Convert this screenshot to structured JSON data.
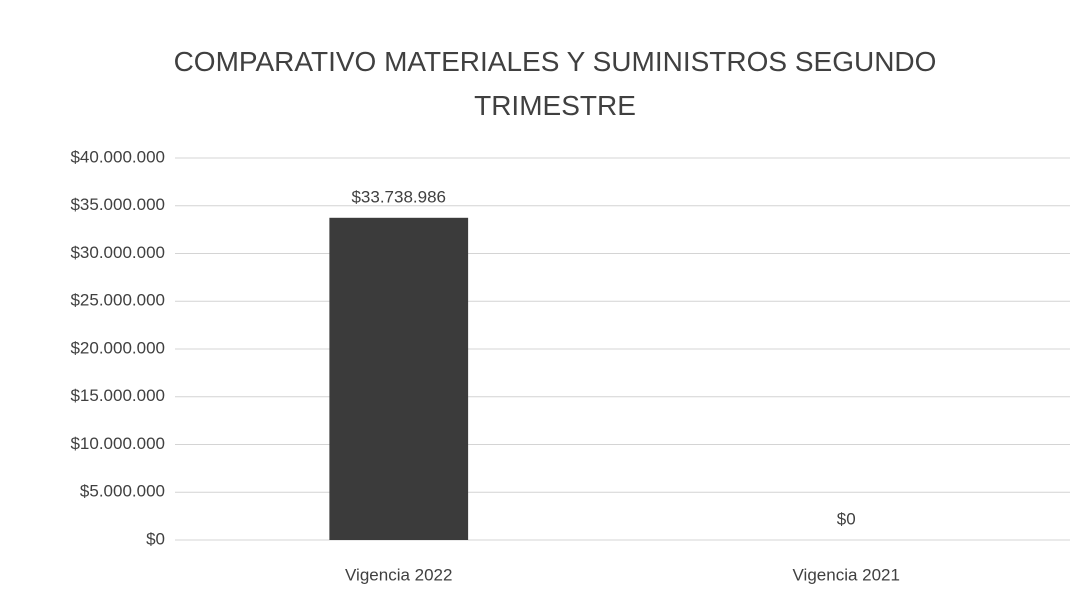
{
  "chart_data": {
    "type": "bar",
    "title": "COMPARATIVO MATERIALES Y SUMINISTROS SEGUNDO TRIMESTRE",
    "categories": [
      "Vigencia 2022",
      "Vigencia 2021"
    ],
    "values": [
      33738986,
      0
    ],
    "value_labels": [
      "$33.738.986",
      "$0"
    ],
    "color": "#3b3b3b",
    "ylim": [
      0,
      40000000
    ],
    "yticks": [
      {
        "value": 0,
        "label": "$0"
      },
      {
        "value": 5000000,
        "label": "$5.000.000"
      },
      {
        "value": 10000000,
        "label": "$10.000.000"
      },
      {
        "value": 15000000,
        "label": "$15.000.000"
      },
      {
        "value": 20000000,
        "label": "$20.000.000"
      },
      {
        "value": 25000000,
        "label": "$25.000.000"
      },
      {
        "value": 30000000,
        "label": "$30.000.000"
      },
      {
        "value": 35000000,
        "label": "$35.000.000"
      },
      {
        "value": 40000000,
        "label": "$40.000.000"
      }
    ],
    "grid": true
  }
}
